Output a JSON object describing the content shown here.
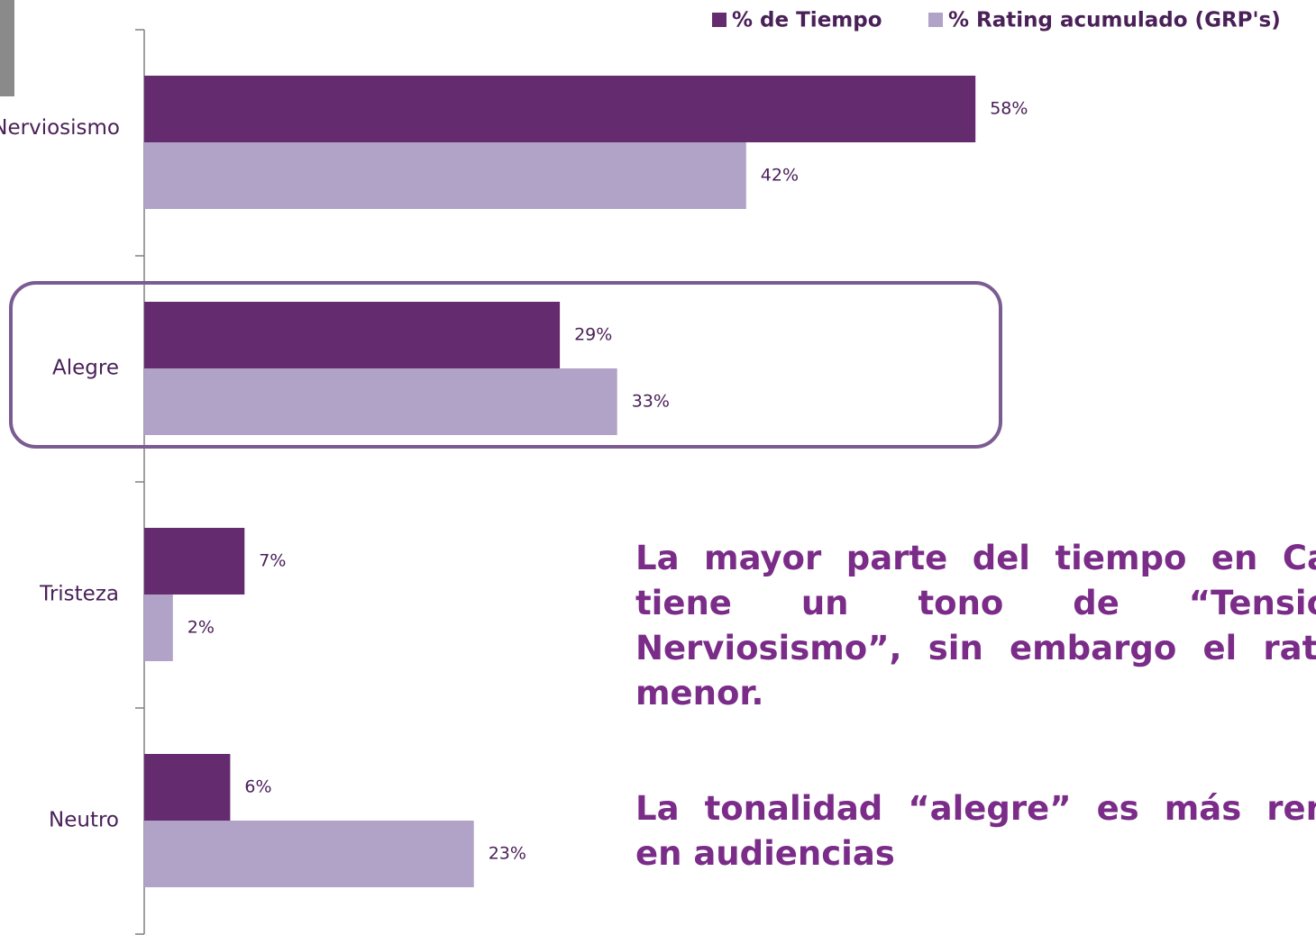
{
  "chart_data": {
    "type": "hbar",
    "categories": [
      "Nerviosismo",
      "Alegre",
      "Tristeza",
      "Neutro"
    ],
    "series": [
      {
        "name": "% de Tiempo",
        "color": "#652b6f",
        "values": [
          58,
          29,
          7,
          6
        ],
        "value_labels": [
          "58%",
          "29%",
          "7%",
          "6%"
        ]
      },
      {
        "name": "% Rating acumulado (GRP's)",
        "color": "#b1a2c8",
        "values": [
          42,
          33,
          2,
          23
        ],
        "value_labels": [
          "42%",
          "33%",
          "2%",
          "23%"
        ]
      }
    ],
    "highlight_category": 1,
    "annotations": [
      [
        "La mayor parte del tiempo en Ca",
        "tiene un tono de “Tensió",
        "Nerviosismo”, sin embargo el rati",
        "menor."
      ],
      [
        "La tonalidad “alegre” es más ren",
        "en audiencias"
      ]
    ]
  }
}
